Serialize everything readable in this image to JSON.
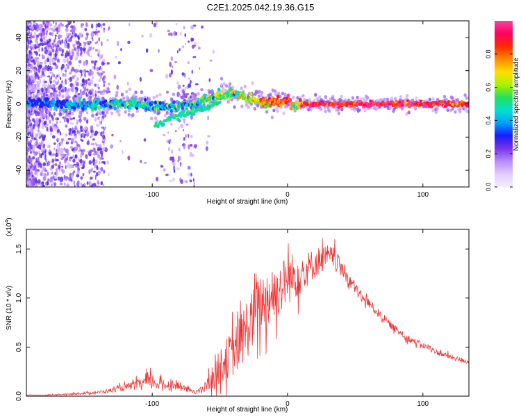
{
  "title": "C2E1.2025.042.19.36.G15",
  "chart_data": [
    {
      "type": "heatmap",
      "xlabel": "Height of straight line (km)",
      "ylabel": "Frequency (Hz)",
      "xlim": [
        -193,
        134
      ],
      "ylim": [
        -50,
        50
      ],
      "x_ticks": [
        -100,
        0,
        100
      ],
      "x_tick_labels": [
        "-100",
        "0",
        "100"
      ],
      "y_ticks": [
        -40,
        -20,
        0,
        20,
        40
      ],
      "y_tick_labels": [
        "-40",
        "-20",
        "0",
        "20",
        "40"
      ],
      "colorbar": {
        "label": "Normalized spectral amplitude",
        "range": [
          0,
          1
        ],
        "ticks": [
          0,
          0.2,
          0.4,
          0.6,
          0.8
        ],
        "tick_labels": [
          "0.0",
          "0.2",
          "0.4",
          "0.6",
          "0.8"
        ],
        "colors": [
          "#f4ecff",
          "#e2ccff",
          "#b98cff",
          "#7a33e6",
          "#1a1aff",
          "#00a0ff",
          "#00e0d0",
          "#22e060",
          "#aaf000",
          "#ffe000",
          "#ff8a00",
          "#ff2a00",
          "#ff0060",
          "#ff40a0"
        ]
      },
      "ridge": {
        "description_points_x": [
          -190,
          -170,
          -150,
          -130,
          -110,
          -100,
          -90,
          -80,
          -70,
          -60,
          -50,
          -40,
          -30,
          -20,
          -10,
          -5,
          0,
          5,
          10,
          20,
          40,
          60,
          80,
          100,
          120,
          134
        ],
        "frequency_hz": [
          1,
          0,
          -1,
          0,
          0,
          -1,
          -2,
          -1,
          0,
          3,
          5,
          6,
          4,
          2,
          1,
          1,
          2,
          -1,
          0,
          0,
          0,
          0,
          0,
          0,
          0,
          0
        ],
        "amplitude": [
          0.3,
          0.32,
          0.38,
          0.42,
          0.45,
          0.45,
          0.42,
          0.4,
          0.45,
          0.5,
          0.55,
          0.55,
          0.6,
          0.7,
          0.8,
          0.85,
          0.92,
          0.6,
          0.85,
          0.9,
          0.92,
          0.93,
          0.92,
          0.9,
          0.88,
          0.85
        ]
      },
      "secondary_branch": {
        "x": [
          -98,
          -90,
          -80,
          -70,
          -60,
          -50
        ],
        "frequency_hz": [
          -13,
          -10,
          -7,
          -5,
          -2,
          1
        ]
      }
    },
    {
      "type": "line",
      "xlabel": "Height of straight line (km)",
      "ylabel": "SNR (10 * v/v)",
      "y_multiplier": "(x10",
      "y_multiplier_exp": "4",
      "y_multiplier_close": ")",
      "xlim": [
        -193,
        134
      ],
      "ylim": [
        0,
        1.7
      ],
      "x_ticks": [
        -100,
        0,
        100
      ],
      "x_tick_labels": [
        "-100",
        "0",
        "100"
      ],
      "y_ticks": [
        0,
        0.5,
        1.0,
        1.5
      ],
      "y_tick_labels": [
        "0.0",
        "0.5",
        "1.0",
        "1.5"
      ],
      "series": [
        {
          "color": "#ee3333",
          "x": [
            -193,
            -180,
            -160,
            -150,
            -140,
            -130,
            -120,
            -110,
            -105,
            -100,
            -95,
            -90,
            -85,
            -80,
            -75,
            -70,
            -65,
            -60,
            -55,
            -50,
            -45,
            -40,
            -35,
            -30,
            -25,
            -20,
            -15,
            -10,
            -5,
            0,
            5,
            10,
            15,
            20,
            25,
            30,
            35,
            40,
            45,
            50,
            55,
            60,
            70,
            80,
            90,
            100,
            110,
            120,
            134
          ],
          "y": [
            0.01,
            0.01,
            0.02,
            0.03,
            0.04,
            0.06,
            0.09,
            0.12,
            0.14,
            0.15,
            0.12,
            0.11,
            0.12,
            0.1,
            0.07,
            0.05,
            0.05,
            0.1,
            0.2,
            0.3,
            0.38,
            0.45,
            0.55,
            0.7,
            0.8,
            0.95,
            1.0,
            1.05,
            1.1,
            1.2,
            1.22,
            1.25,
            1.3,
            1.35,
            1.4,
            1.42,
            1.4,
            1.3,
            1.2,
            1.1,
            1.0,
            0.95,
            0.8,
            0.68,
            0.58,
            0.52,
            0.45,
            0.4,
            0.35
          ],
          "noise": [
            0.005,
            0.006,
            0.01,
            0.015,
            0.02,
            0.03,
            0.05,
            0.07,
            0.1,
            0.12,
            0.08,
            0.07,
            0.07,
            0.06,
            0.04,
            0.03,
            0.04,
            0.1,
            0.18,
            0.25,
            0.3,
            0.35,
            0.4,
            0.45,
            0.45,
            0.45,
            0.45,
            0.4,
            0.38,
            0.38,
            0.35,
            0.3,
            0.25,
            0.22,
            0.2,
            0.18,
            0.15,
            0.12,
            0.1,
            0.09,
            0.08,
            0.07,
            0.06,
            0.05,
            0.05,
            0.04,
            0.04,
            0.04,
            0.03
          ]
        }
      ]
    }
  ]
}
